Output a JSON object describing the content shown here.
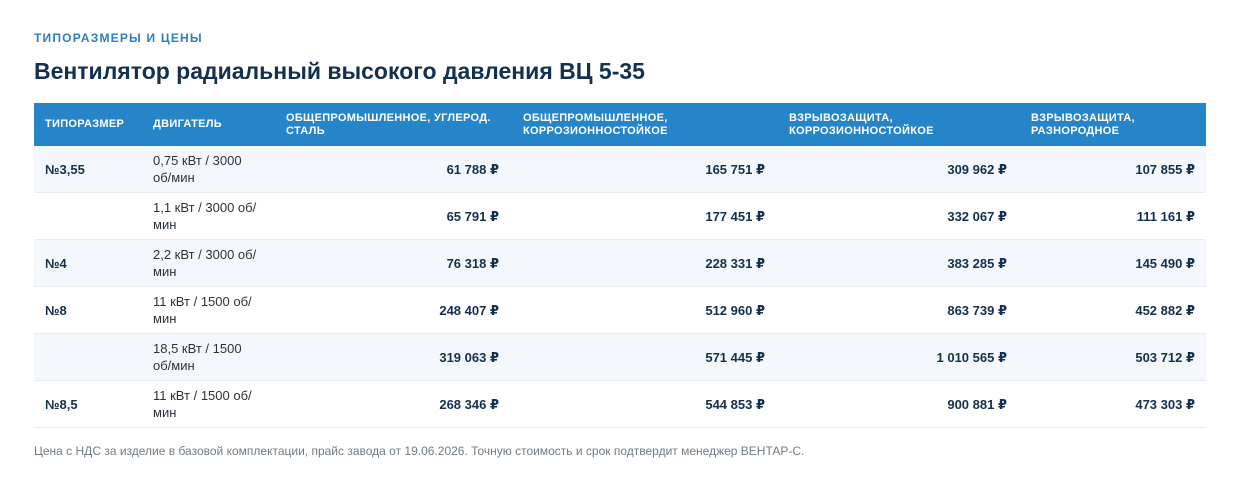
{
  "section": {
    "eyebrow": "ТИПОРАЗМЕРЫ И ЦЕНЫ",
    "title": "Вентилятор радиальный высокого давления ВЦ 5-35"
  },
  "table": {
    "headers": [
      "ТИПОРАЗМЕР",
      "ДВИГАТЕЛЬ",
      "ОБЩЕПРОМЫШЛЕННОЕ, УГЛЕРОД. СТАЛЬ",
      "ОБЩЕПРОМЫШЛЕННОЕ, КОРРОЗИОННОСТОЙКОЕ",
      "ВЗРЫВОЗАЩИТА, КОРРОЗИОННОСТОЙКОЕ",
      "ВЗРЫВОЗАЩИТА, РАЗНОРОДНОЕ"
    ],
    "rows": [
      {
        "size": "№3,55",
        "engine": "0,75 кВт / 3000 об/мин",
        "prices": [
          "61 788 ₽",
          "165 751 ₽",
          "309 962 ₽",
          "107 855 ₽"
        ]
      },
      {
        "size": "",
        "engine": "1,1 кВт / 3000 об/мин",
        "prices": [
          "65 791 ₽",
          "177 451 ₽",
          "332 067 ₽",
          "111 161 ₽"
        ]
      },
      {
        "size": "№4",
        "engine": "2,2 кВт / 3000 об/мин",
        "prices": [
          "76 318 ₽",
          "228 331 ₽",
          "383 285 ₽",
          "145 490 ₽"
        ]
      },
      {
        "size": "№8",
        "engine": "11 кВт / 1500 об/мин",
        "prices": [
          "248 407 ₽",
          "512 960 ₽",
          "863 739 ₽",
          "452 882 ₽"
        ]
      },
      {
        "size": "",
        "engine": "18,5 кВт / 1500 об/мин",
        "prices": [
          "319 063 ₽",
          "571 445 ₽",
          "1 010 565 ₽",
          "503 712 ₽"
        ]
      },
      {
        "size": "№8,5",
        "engine": "11 кВт / 1500 об/мин",
        "prices": [
          "268 346 ₽",
          "544 853 ₽",
          "900 881 ₽",
          "473 303 ₽"
        ]
      }
    ]
  },
  "footnote": "Цена с НДС за изделие в базовой комплектации, прайс завода от 19.06.2026. Точную стоимость и срок подтвердит менеджер ВЕНТАР-С."
}
